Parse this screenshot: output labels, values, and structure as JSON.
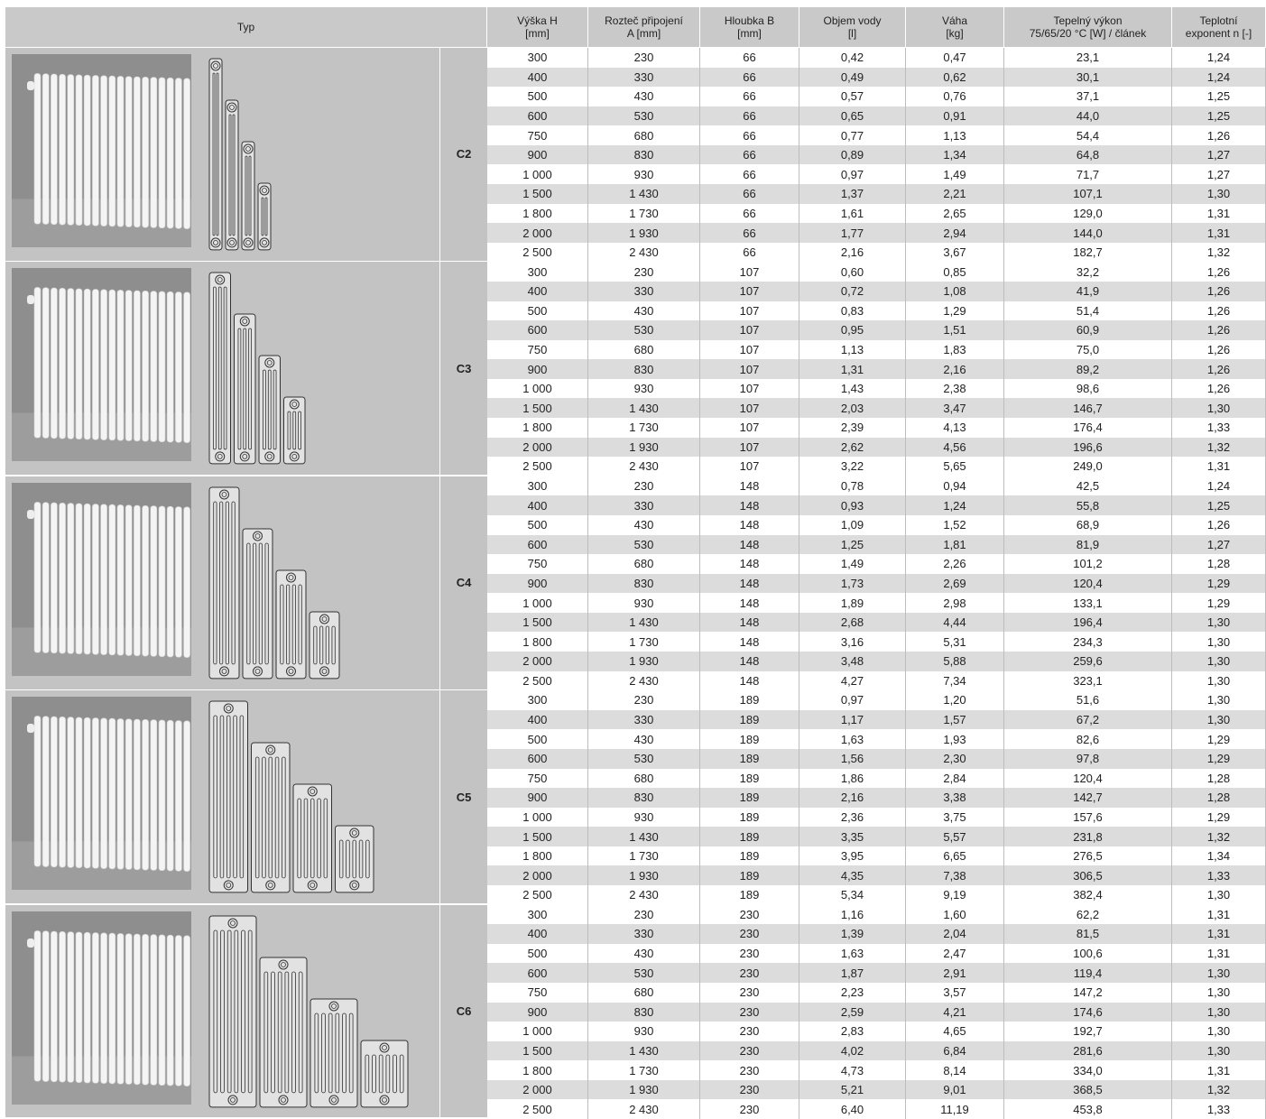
{
  "table": {
    "header": [
      "Typ",
      "Výška H\n[mm]",
      "Rozteč připojení\nA [mm]",
      "Hloubka B\n[mm]",
      "Objem vody\n[l]",
      "Váha\n[kg]",
      "Tepelný výkon\n75/65/20 °C [W] / článek",
      "Teplotní\nexponent n [-]"
    ],
    "groups": [
      {
        "type": "C2",
        "rows": [
          [
            "300",
            "230",
            "66",
            "0,42",
            "0,47",
            "23,1",
            "1,24"
          ],
          [
            "400",
            "330",
            "66",
            "0,49",
            "0,62",
            "30,1",
            "1,24"
          ],
          [
            "500",
            "430",
            "66",
            "0,57",
            "0,76",
            "37,1",
            "1,25"
          ],
          [
            "600",
            "530",
            "66",
            "0,65",
            "0,91",
            "44,0",
            "1,25"
          ],
          [
            "750",
            "680",
            "66",
            "0,77",
            "1,13",
            "54,4",
            "1,26"
          ],
          [
            "900",
            "830",
            "66",
            "0,89",
            "1,34",
            "64,8",
            "1,27"
          ],
          [
            "1 000",
            "930",
            "66",
            "0,97",
            "1,49",
            "71,7",
            "1,27"
          ],
          [
            "1 500",
            "1 430",
            "66",
            "1,37",
            "2,21",
            "107,1",
            "1,30"
          ],
          [
            "1 800",
            "1 730",
            "66",
            "1,61",
            "2,65",
            "129,0",
            "1,31"
          ],
          [
            "2 000",
            "1 930",
            "66",
            "1,77",
            "2,94",
            "144,0",
            "1,31"
          ],
          [
            "2 500",
            "2 430",
            "66",
            "2,16",
            "3,67",
            "182,7",
            "1,32"
          ]
        ]
      },
      {
        "type": "C3",
        "rows": [
          [
            "300",
            "230",
            "107",
            "0,60",
            "0,85",
            "32,2",
            "1,26"
          ],
          [
            "400",
            "330",
            "107",
            "0,72",
            "1,08",
            "41,9",
            "1,26"
          ],
          [
            "500",
            "430",
            "107",
            "0,83",
            "1,29",
            "51,4",
            "1,26"
          ],
          [
            "600",
            "530",
            "107",
            "0,95",
            "1,51",
            "60,9",
            "1,26"
          ],
          [
            "750",
            "680",
            "107",
            "1,13",
            "1,83",
            "75,0",
            "1,26"
          ],
          [
            "900",
            "830",
            "107",
            "1,31",
            "2,16",
            "89,2",
            "1,26"
          ],
          [
            "1 000",
            "930",
            "107",
            "1,43",
            "2,38",
            "98,6",
            "1,26"
          ],
          [
            "1 500",
            "1 430",
            "107",
            "2,03",
            "3,47",
            "146,7",
            "1,30"
          ],
          [
            "1 800",
            "1 730",
            "107",
            "2,39",
            "4,13",
            "176,4",
            "1,33"
          ],
          [
            "2 000",
            "1 930",
            "107",
            "2,62",
            "4,56",
            "196,6",
            "1,32"
          ],
          [
            "2 500",
            "2 430",
            "107",
            "3,22",
            "5,65",
            "249,0",
            "1,31"
          ]
        ]
      },
      {
        "type": "C4",
        "rows": [
          [
            "300",
            "230",
            "148",
            "0,78",
            "0,94",
            "42,5",
            "1,24"
          ],
          [
            "400",
            "330",
            "148",
            "0,93",
            "1,24",
            "55,8",
            "1,25"
          ],
          [
            "500",
            "430",
            "148",
            "1,09",
            "1,52",
            "68,9",
            "1,26"
          ],
          [
            "600",
            "530",
            "148",
            "1,25",
            "1,81",
            "81,9",
            "1,27"
          ],
          [
            "750",
            "680",
            "148",
            "1,49",
            "2,26",
            "101,2",
            "1,28"
          ],
          [
            "900",
            "830",
            "148",
            "1,73",
            "2,69",
            "120,4",
            "1,29"
          ],
          [
            "1 000",
            "930",
            "148",
            "1,89",
            "2,98",
            "133,1",
            "1,29"
          ],
          [
            "1 500",
            "1 430",
            "148",
            "2,68",
            "4,44",
            "196,4",
            "1,30"
          ],
          [
            "1 800",
            "1 730",
            "148",
            "3,16",
            "5,31",
            "234,3",
            "1,30"
          ],
          [
            "2 000",
            "1 930",
            "148",
            "3,48",
            "5,88",
            "259,6",
            "1,30"
          ],
          [
            "2 500",
            "2 430",
            "148",
            "4,27",
            "7,34",
            "323,1",
            "1,30"
          ]
        ]
      },
      {
        "type": "C5",
        "rows": [
          [
            "300",
            "230",
            "189",
            "0,97",
            "1,20",
            "51,6",
            "1,30"
          ],
          [
            "400",
            "330",
            "189",
            "1,17",
            "1,57",
            "67,2",
            "1,30"
          ],
          [
            "500",
            "430",
            "189",
            "1,63",
            "1,93",
            "82,6",
            "1,29"
          ],
          [
            "600",
            "530",
            "189",
            "1,56",
            "2,30",
            "97,8",
            "1,29"
          ],
          [
            "750",
            "680",
            "189",
            "1,86",
            "2,84",
            "120,4",
            "1,28"
          ],
          [
            "900",
            "830",
            "189",
            "2,16",
            "3,38",
            "142,7",
            "1,28"
          ],
          [
            "1 000",
            "930",
            "189",
            "2,36",
            "3,75",
            "157,6",
            "1,29"
          ],
          [
            "1 500",
            "1 430",
            "189",
            "3,35",
            "5,57",
            "231,8",
            "1,32"
          ],
          [
            "1 800",
            "1 730",
            "189",
            "3,95",
            "6,65",
            "276,5",
            "1,34"
          ],
          [
            "2 000",
            "1 930",
            "189",
            "4,35",
            "7,38",
            "306,5",
            "1,33"
          ],
          [
            "2 500",
            "2 430",
            "189",
            "5,34",
            "9,19",
            "382,4",
            "1,30"
          ]
        ]
      },
      {
        "type": "C6",
        "rows": [
          [
            "300",
            "230",
            "230",
            "1,16",
            "1,60",
            "62,2",
            "1,31"
          ],
          [
            "400",
            "330",
            "230",
            "1,39",
            "2,04",
            "81,5",
            "1,31"
          ],
          [
            "500",
            "430",
            "230",
            "1,63",
            "2,47",
            "100,6",
            "1,31"
          ],
          [
            "600",
            "530",
            "230",
            "1,87",
            "2,91",
            "119,4",
            "1,30"
          ],
          [
            "750",
            "680",
            "230",
            "2,23",
            "3,57",
            "147,2",
            "1,30"
          ],
          [
            "900",
            "830",
            "230",
            "2,59",
            "4,21",
            "174,6",
            "1,30"
          ],
          [
            "1 000",
            "930",
            "230",
            "2,83",
            "4,65",
            "192,7",
            "1,30"
          ],
          [
            "1 500",
            "1 430",
            "230",
            "4,02",
            "6,84",
            "281,6",
            "1,30"
          ],
          [
            "1 800",
            "1 730",
            "230",
            "4,73",
            "8,14",
            "334,0",
            "1,31"
          ],
          [
            "2 000",
            "1 930",
            "230",
            "5,21",
            "9,01",
            "368,5",
            "1,32"
          ],
          [
            "2 500",
            "2 430",
            "230",
            "6,40",
            "11,19",
            "453,8",
            "1,33"
          ]
        ]
      }
    ]
  }
}
